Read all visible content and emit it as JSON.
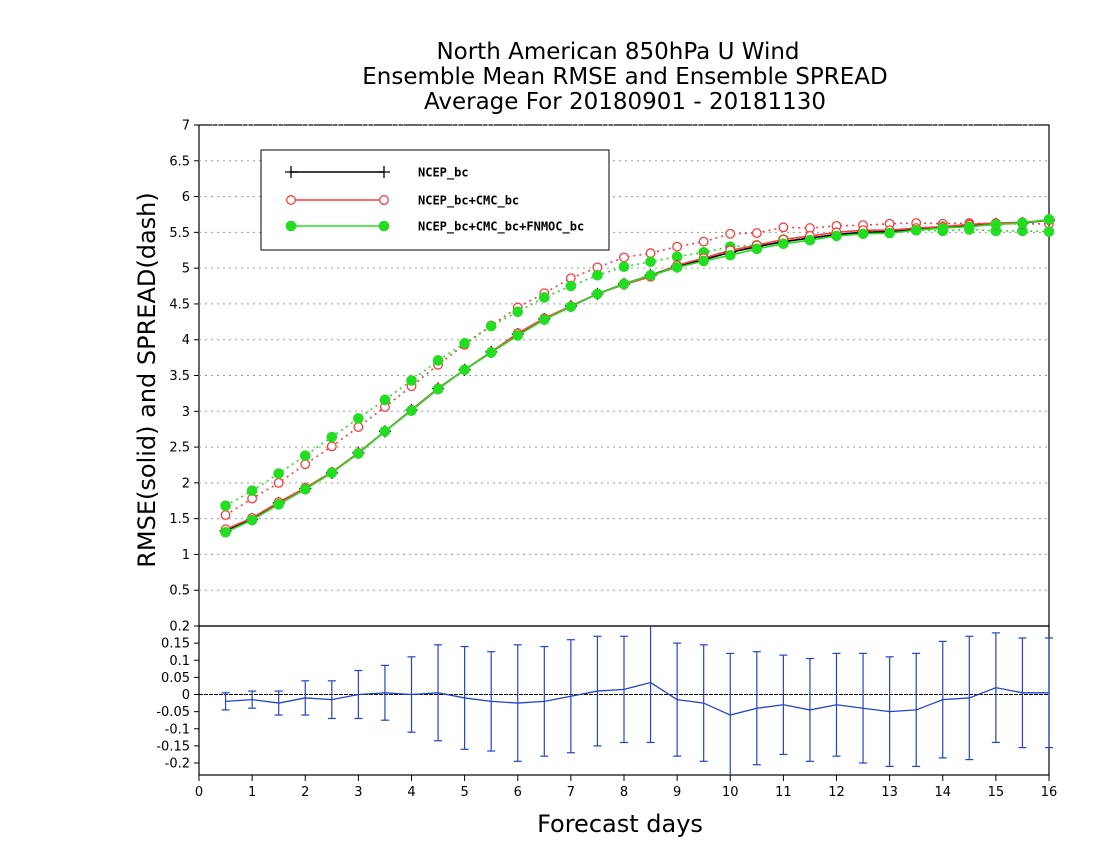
{
  "chart_data": [
    {
      "type": "line",
      "title_lines": [
        "North American 850hPa U Wind",
        "Ensemble Mean RMSE and Ensemble SPREAD",
        "Average For 20180901 - 20181130"
      ],
      "xlabel": "Forecast days",
      "ylabel": "RMSE(solid) and SPREAD(dash)",
      "xlim": [
        0,
        16
      ],
      "ylim": [
        0,
        7
      ],
      "y_ticks": [
        "0.5",
        "1",
        "1.5",
        "2",
        "2.5",
        "3",
        "3.5",
        "4",
        "4.5",
        "5",
        "5.5",
        "6",
        "6.5",
        "7"
      ],
      "grid": "horizontal dotted",
      "legend_position": "top-left",
      "x": [
        0.5,
        1,
        1.5,
        2,
        2.5,
        3,
        3.5,
        4,
        4.5,
        5,
        5.5,
        6,
        6.5,
        7,
        7.5,
        8,
        8.5,
        9,
        9.5,
        10,
        10.5,
        11,
        11.5,
        12,
        12.5,
        13,
        13.5,
        14,
        14.5,
        15,
        15.5,
        16
      ],
      "series": [
        {
          "name": "NCEP_bc",
          "color": "#000000",
          "marker": "plus",
          "rmse": [
            1.33,
            1.49,
            1.72,
            1.92,
            2.14,
            2.42,
            2.72,
            3.02,
            3.32,
            3.58,
            3.83,
            4.08,
            4.29,
            4.47,
            4.64,
            4.78,
            4.9,
            5.03,
            5.12,
            5.22,
            5.3,
            5.37,
            5.42,
            5.47,
            5.5,
            5.51,
            5.54,
            5.57,
            5.6,
            5.62,
            5.63,
            5.67
          ],
          "spread": []
        },
        {
          "name": "NCEP_bc+CMC_bc",
          "color": "#ff3b3b",
          "marker": "open-circle",
          "rmse": [
            1.35,
            1.51,
            1.73,
            1.93,
            2.15,
            2.42,
            2.72,
            3.02,
            3.32,
            3.58,
            3.83,
            4.09,
            4.3,
            4.47,
            4.64,
            4.77,
            4.88,
            5.04,
            5.14,
            5.25,
            5.32,
            5.4,
            5.45,
            5.5,
            5.53,
            5.53,
            5.56,
            5.58,
            5.61,
            5.63,
            5.64,
            5.67
          ],
          "spread": [
            1.55,
            1.78,
            2.0,
            2.26,
            2.51,
            2.78,
            3.06,
            3.35,
            3.65,
            3.93,
            4.2,
            4.45,
            4.65,
            4.86,
            5.01,
            5.15,
            5.21,
            5.3,
            5.37,
            5.48,
            5.49,
            5.57,
            5.56,
            5.59,
            5.6,
            5.62,
            5.63,
            5.62,
            5.63,
            5.62,
            5.62,
            5.62
          ]
        },
        {
          "name": "NCEP_bc+CMC_bc+FNMOC_bc",
          "color": "#22dd22",
          "marker": "filled-circle",
          "rmse": [
            1.31,
            1.48,
            1.7,
            1.91,
            2.14,
            2.41,
            2.72,
            3.01,
            3.31,
            3.58,
            3.82,
            4.06,
            4.28,
            4.46,
            4.64,
            4.78,
            4.9,
            5.01,
            5.1,
            5.18,
            5.27,
            5.34,
            5.39,
            5.45,
            5.48,
            5.49,
            5.53,
            5.56,
            5.58,
            5.61,
            5.63,
            5.68
          ],
          "spread": [
            1.68,
            1.89,
            2.13,
            2.38,
            2.64,
            2.9,
            3.16,
            3.43,
            3.71,
            3.95,
            4.19,
            4.39,
            4.59,
            4.75,
            4.9,
            5.02,
            5.09,
            5.16,
            5.22,
            5.3,
            5.32,
            5.4,
            5.42,
            5.47,
            5.51,
            5.51,
            5.53,
            5.52,
            5.54,
            5.52,
            5.52,
            5.51
          ]
        }
      ]
    },
    {
      "type": "line",
      "xlabel": "Forecast days",
      "xlim": [
        0,
        16
      ],
      "ylim": [
        -0.235,
        0.2
      ],
      "x_ticks": [
        "0",
        "1",
        "2",
        "3",
        "4",
        "5",
        "6",
        "7",
        "8",
        "9",
        "10",
        "11",
        "12",
        "13",
        "14",
        "15",
        "16"
      ],
      "y_ticks": [
        "-0.2",
        "-0.15",
        "-0.1",
        "-0.05",
        "0",
        "0.05",
        "0.1",
        "0.15",
        "0.2"
      ],
      "reference_line": 0,
      "color": "#2244cc",
      "x": [
        0.5,
        1,
        1.5,
        2,
        2.5,
        3,
        3.5,
        4,
        4.5,
        5,
        5.5,
        6,
        6.5,
        7,
        7.5,
        8,
        8.5,
        9,
        9.5,
        10,
        10.5,
        11,
        11.5,
        12,
        12.5,
        13,
        13.5,
        14,
        14.5,
        15,
        15.5,
        16
      ],
      "values": [
        -0.02,
        -0.015,
        -0.025,
        -0.01,
        -0.015,
        0.0,
        0.005,
        0.0,
        0.005,
        -0.01,
        -0.02,
        -0.025,
        -0.02,
        -0.005,
        0.01,
        0.015,
        0.035,
        -0.015,
        -0.025,
        -0.06,
        -0.04,
        -0.03,
        -0.045,
        -0.03,
        -0.04,
        -0.05,
        -0.045,
        -0.015,
        -0.01,
        0.02,
        0.005,
        0.005
      ],
      "error_bars": [
        0.025,
        0.025,
        0.035,
        0.05,
        0.055,
        0.07,
        0.08,
        0.11,
        0.14,
        0.15,
        0.145,
        0.17,
        0.16,
        0.165,
        0.16,
        0.155,
        0.175,
        0.165,
        0.17,
        0.18,
        0.165,
        0.145,
        0.15,
        0.15,
        0.16,
        0.16,
        0.165,
        0.17,
        0.18,
        0.16,
        0.16,
        0.16
      ]
    }
  ]
}
